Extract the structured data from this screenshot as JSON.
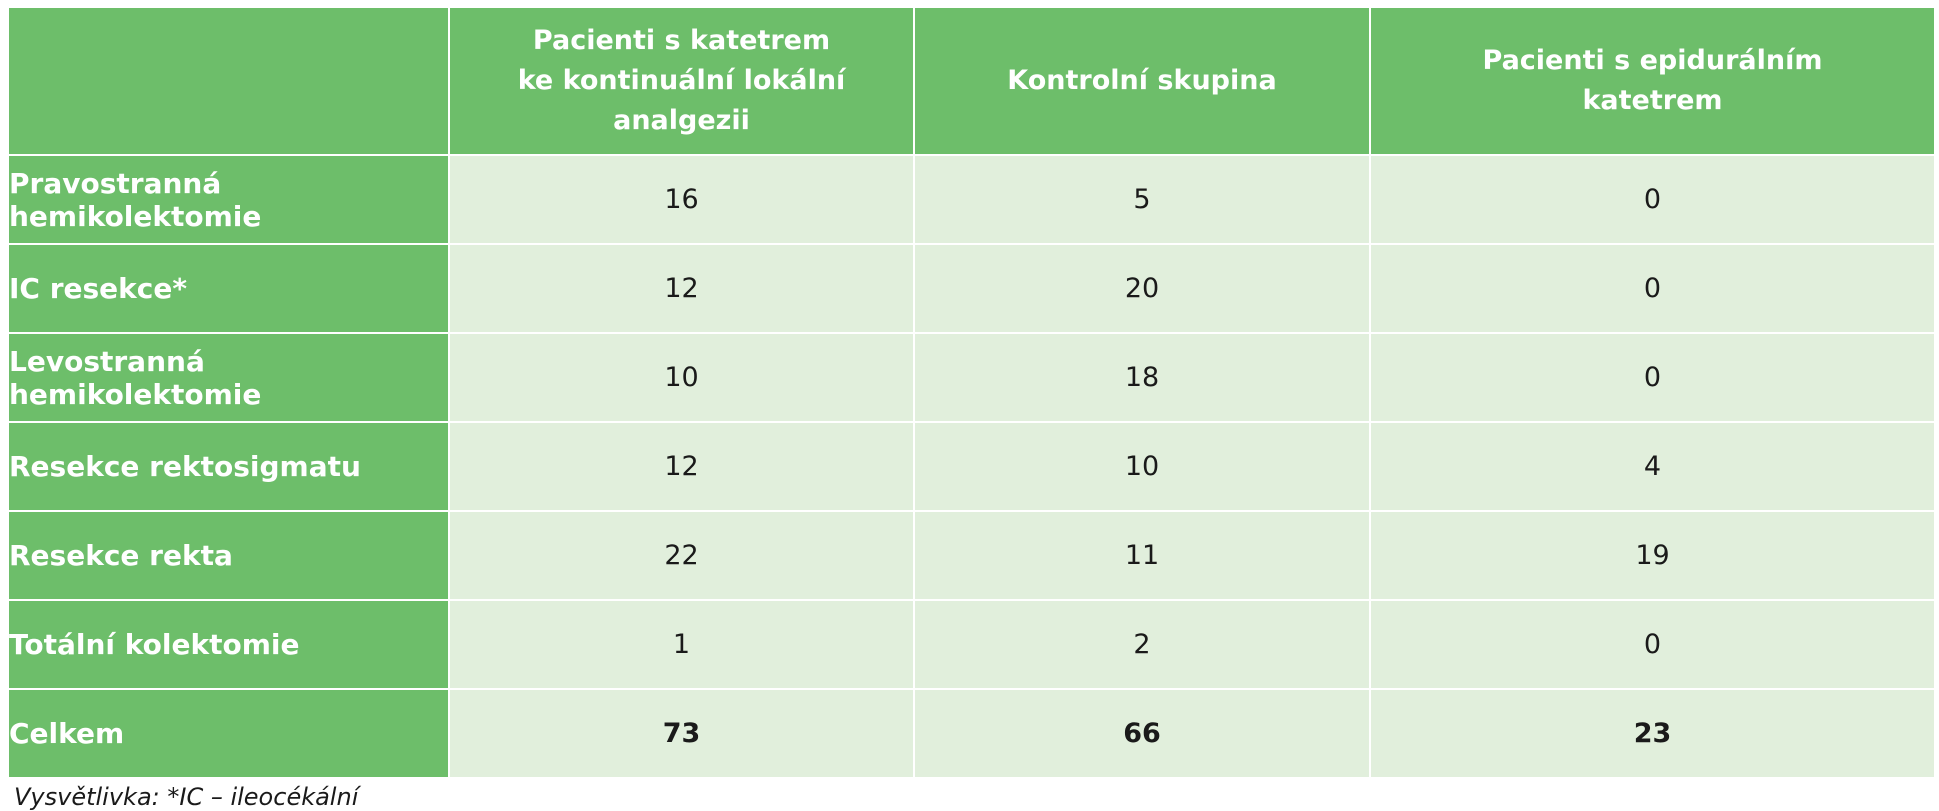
{
  "table": {
    "columns": [
      "",
      "Pacienti s katetrem\nke kontinuální lokální\nanalgezii",
      "Kontrolní skupina",
      "Pacienti s epidurálním\nkatetrem"
    ],
    "rows": [
      {
        "label": "Pravostranná hemikolektomie",
        "values": [
          "16",
          "5",
          "0"
        ]
      },
      {
        "label": "IC resekce*",
        "values": [
          "12",
          "20",
          "0"
        ]
      },
      {
        "label": "Levostranná hemikolektomie",
        "values": [
          "10",
          "18",
          "0"
        ]
      },
      {
        "label": "Resekce rektosigmatu",
        "values": [
          "12",
          "10",
          "4"
        ]
      },
      {
        "label": "Resekce rekta",
        "values": [
          "22",
          "11",
          "19"
        ]
      },
      {
        "label": "Totální kolektomie",
        "values": [
          "1",
          "2",
          "0"
        ]
      },
      {
        "label": "Celkem",
        "values": [
          "73",
          "66",
          "23"
        ]
      }
    ]
  },
  "footnote": "Vysvětlivka: *IC – ileocékální",
  "colors": {
    "header_bg": "#6dbe6a",
    "cell_bg": "#e1efdc"
  }
}
